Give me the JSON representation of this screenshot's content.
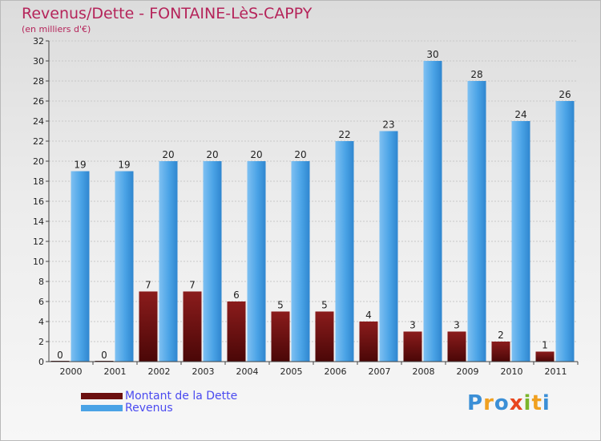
{
  "header": {
    "title": "Revenus/Dette - FONTAINE-LèS-CAPPY",
    "subtitle": "(en milliers d'€)"
  },
  "chart_data": {
    "type": "bar",
    "title": "Revenus/Dette - FONTAINE-LèS-CAPPY",
    "subtitle": "(en milliers d'€)",
    "categories": [
      "2000",
      "2001",
      "2002",
      "2003",
      "2004",
      "2005",
      "2006",
      "2007",
      "2008",
      "2009",
      "2010",
      "2011"
    ],
    "series": [
      {
        "name": "Montant de la Dette",
        "color": "#7a1515",
        "values": [
          0,
          0,
          7,
          7,
          6,
          5,
          5,
          4,
          3,
          3,
          2,
          1
        ]
      },
      {
        "name": "Revenus",
        "color": "#4aa3e6",
        "values": [
          19,
          19,
          20,
          20,
          20,
          20,
          22,
          23,
          30,
          28,
          24,
          26
        ]
      }
    ],
    "y_ticks": [
      0,
      2,
      4,
      6,
      8,
      10,
      12,
      14,
      16,
      18,
      20,
      22,
      24,
      26,
      28,
      30,
      32
    ],
    "ylim": [
      0,
      32
    ],
    "grid": true,
    "legend_position": "bottom-left"
  },
  "legend": {
    "items": [
      {
        "label": "Montant de la Dette",
        "color": "#7a1515"
      },
      {
        "label": "Revenus",
        "color": "#4aa3e6"
      }
    ]
  },
  "logo": {
    "letters": [
      {
        "ch": "P",
        "color": "#3b8fd6"
      },
      {
        "ch": "r",
        "color": "#f0a020"
      },
      {
        "ch": "o",
        "color": "#3b8fd6"
      },
      {
        "ch": "x",
        "color": "#e8461e"
      },
      {
        "ch": "i",
        "color": "#7ab52b"
      },
      {
        "ch": "t",
        "color": "#f0a020"
      },
      {
        "ch": "i",
        "color": "#3b8fd6"
      }
    ]
  }
}
